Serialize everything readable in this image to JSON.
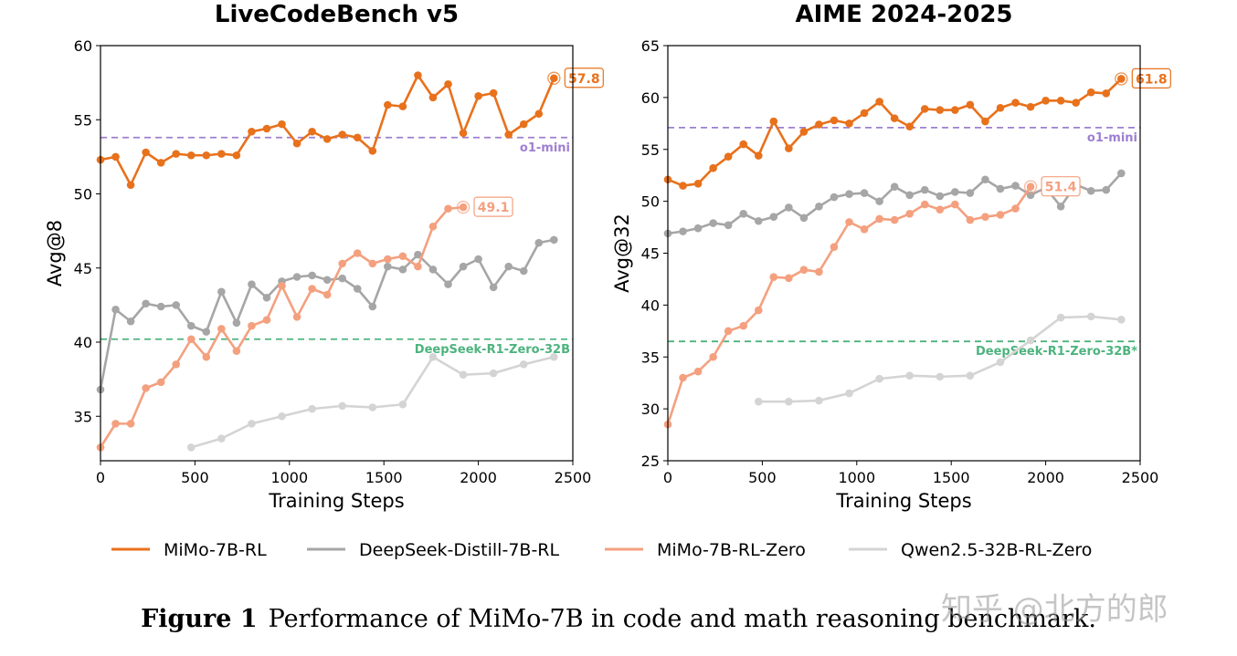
{
  "caption": {
    "label": "Figure 1",
    "text": "Performance of MiMo-7B in code and math reasoning benchmark."
  },
  "watermark": "知乎 @北方的郎",
  "legend": [
    {
      "name": "MiMo-7B-RL",
      "color": "#e8711c"
    },
    {
      "name": "DeepSeek-Distill-7B-RL",
      "color": "#a6a6a6"
    },
    {
      "name": "MiMo-7B-RL-Zero",
      "color": "#f4a07f"
    },
    {
      "name": "Qwen2.5-32B-RL-Zero",
      "color": "#d4d4d4"
    }
  ],
  "chart_data": [
    {
      "type": "line",
      "title": "LiveCodeBench v5",
      "xlabel": "Training Steps",
      "ylabel": "Avg@8",
      "xlim": [
        0,
        2500
      ],
      "ylim": [
        32,
        60
      ],
      "xticks": [
        0,
        500,
        1000,
        1500,
        2000,
        2500
      ],
      "yticks": [
        35,
        40,
        45,
        50,
        55,
        60
      ],
      "reference_lines": [
        {
          "name": "o1-mini",
          "value": 53.8,
          "color": "#9e7fd0"
        },
        {
          "name": "DeepSeek-R1-Zero-32B",
          "value": 40.2,
          "color": "#4db37e"
        }
      ],
      "series": [
        {
          "name": "MiMo-7B-RL",
          "color": "#e8711c",
          "end_label": "57.8",
          "x": [
            0,
            80,
            160,
            240,
            320,
            400,
            480,
            560,
            640,
            720,
            800,
            880,
            960,
            1040,
            1120,
            1200,
            1280,
            1360,
            1440,
            1520,
            1600,
            1680,
            1760,
            1840,
            1920,
            2000,
            2080,
            2160,
            2240,
            2320,
            2400
          ],
          "y": [
            52.3,
            52.5,
            50.6,
            52.8,
            52.1,
            52.7,
            52.6,
            52.6,
            52.7,
            52.6,
            54.2,
            54.4,
            54.7,
            53.4,
            54.2,
            53.7,
            54.0,
            53.8,
            52.9,
            56.0,
            55.9,
            58.0,
            56.5,
            57.4,
            54.1,
            56.6,
            56.8,
            54.0,
            54.7,
            55.4,
            57.8
          ]
        },
        {
          "name": "DeepSeek-Distill-7B-RL",
          "color": "#a6a6a6",
          "end_label": "",
          "x": [
            0,
            80,
            160,
            240,
            320,
            400,
            480,
            560,
            640,
            720,
            800,
            880,
            960,
            1040,
            1120,
            1200,
            1280,
            1360,
            1440,
            1520,
            1600,
            1680,
            1760,
            1840,
            1920,
            2000,
            2080,
            2160,
            2240,
            2320,
            2400
          ],
          "y": [
            36.8,
            42.2,
            41.4,
            42.6,
            42.4,
            42.5,
            41.1,
            40.7,
            43.4,
            41.3,
            43.9,
            43.0,
            44.1,
            44.4,
            44.5,
            44.2,
            44.3,
            43.6,
            42.4,
            45.1,
            44.9,
            45.9,
            44.9,
            43.9,
            45.1,
            45.6,
            43.7,
            45.1,
            44.8,
            46.7,
            46.9
          ]
        },
        {
          "name": "MiMo-7B-RL-Zero",
          "color": "#f4a07f",
          "end_label": "49.1",
          "x": [
            0,
            80,
            160,
            240,
            320,
            400,
            480,
            560,
            640,
            720,
            800,
            880,
            960,
            1040,
            1120,
            1200,
            1280,
            1360,
            1440,
            1520,
            1600,
            1680,
            1760,
            1840,
            1920
          ],
          "y": [
            32.9,
            34.5,
            34.5,
            36.9,
            37.3,
            38.5,
            40.2,
            39.0,
            40.9,
            39.4,
            41.1,
            41.5,
            43.8,
            41.7,
            43.6,
            43.2,
            45.3,
            46.0,
            45.3,
            45.6,
            45.8,
            45.1,
            47.8,
            49.0,
            49.1
          ]
        },
        {
          "name": "Qwen2.5-32B-RL-Zero",
          "color": "#d4d4d4",
          "end_label": "",
          "x": [
            480,
            640,
            800,
            960,
            1120,
            1280,
            1440,
            1600,
            1760,
            1920,
            2080,
            2240,
            2400
          ],
          "y": [
            32.9,
            33.5,
            34.5,
            35.0,
            35.5,
            35.7,
            35.6,
            35.8,
            39.0,
            37.8,
            37.9,
            38.5,
            39.0
          ]
        }
      ]
    },
    {
      "type": "line",
      "title": "AIME 2024-2025",
      "xlabel": "Training Steps",
      "ylabel": "Avg@32",
      "xlim": [
        0,
        2500
      ],
      "ylim": [
        25,
        65
      ],
      "xticks": [
        0,
        500,
        1000,
        1500,
        2000,
        2500
      ],
      "yticks": [
        25,
        30,
        35,
        40,
        45,
        50,
        55,
        60,
        65
      ],
      "reference_lines": [
        {
          "name": "o1-mini",
          "value": 57.1,
          "color": "#9e7fd0"
        },
        {
          "name": "DeepSeek-R1-Zero-32B*",
          "value": 36.5,
          "color": "#4db37e"
        }
      ],
      "series": [
        {
          "name": "MiMo-7B-RL",
          "color": "#e8711c",
          "end_label": "61.8",
          "x": [
            0,
            80,
            160,
            240,
            320,
            400,
            480,
            560,
            640,
            720,
            800,
            880,
            960,
            1040,
            1120,
            1200,
            1280,
            1360,
            1440,
            1520,
            1600,
            1680,
            1760,
            1840,
            1920,
            2000,
            2080,
            2160,
            2240,
            2320,
            2400
          ],
          "y": [
            52.1,
            51.5,
            51.7,
            53.2,
            54.3,
            55.5,
            54.4,
            57.7,
            55.1,
            56.7,
            57.4,
            57.8,
            57.5,
            58.5,
            59.6,
            58.0,
            57.2,
            58.9,
            58.8,
            58.8,
            59.3,
            57.7,
            59.0,
            59.5,
            59.1,
            59.7,
            59.7,
            59.5,
            60.5,
            60.4,
            61.8
          ]
        },
        {
          "name": "DeepSeek-Distill-7B-RL",
          "color": "#a6a6a6",
          "end_label": "",
          "x": [
            0,
            80,
            160,
            240,
            320,
            400,
            480,
            560,
            640,
            720,
            800,
            880,
            960,
            1040,
            1120,
            1200,
            1280,
            1360,
            1440,
            1520,
            1600,
            1680,
            1760,
            1840,
            1920,
            2000,
            2080,
            2160,
            2240,
            2320,
            2400
          ],
          "y": [
            46.9,
            47.1,
            47.4,
            47.9,
            47.7,
            48.8,
            48.1,
            48.5,
            49.4,
            48.4,
            49.5,
            50.4,
            50.7,
            50.8,
            50.0,
            51.4,
            50.6,
            51.1,
            50.5,
            50.9,
            50.8,
            52.1,
            51.2,
            51.5,
            50.6,
            51.3,
            49.5,
            51.6,
            51.0,
            51.1,
            52.7
          ]
        },
        {
          "name": "MiMo-7B-RL-Zero",
          "color": "#f4a07f",
          "end_label": "51.4",
          "x": [
            0,
            80,
            160,
            240,
            320,
            400,
            480,
            560,
            640,
            720,
            800,
            880,
            960,
            1040,
            1120,
            1200,
            1280,
            1360,
            1440,
            1520,
            1600,
            1680,
            1760,
            1840,
            1920
          ],
          "y": [
            28.5,
            33.0,
            33.6,
            35.0,
            37.5,
            38.0,
            39.5,
            42.7,
            42.6,
            43.4,
            43.2,
            45.6,
            48.0,
            47.3,
            48.3,
            48.2,
            48.8,
            49.7,
            49.2,
            49.7,
            48.2,
            48.5,
            48.7,
            49.3,
            51.4
          ]
        },
        {
          "name": "Qwen2.5-32B-RL-Zero",
          "color": "#d4d4d4",
          "end_label": "",
          "x": [
            480,
            640,
            800,
            960,
            1120,
            1280,
            1440,
            1600,
            1760,
            1920,
            2080,
            2240,
            2400
          ],
          "y": [
            30.7,
            30.7,
            30.8,
            31.5,
            32.9,
            33.2,
            33.1,
            33.2,
            34.5,
            36.6,
            38.8,
            38.9,
            38.6
          ]
        }
      ]
    }
  ]
}
